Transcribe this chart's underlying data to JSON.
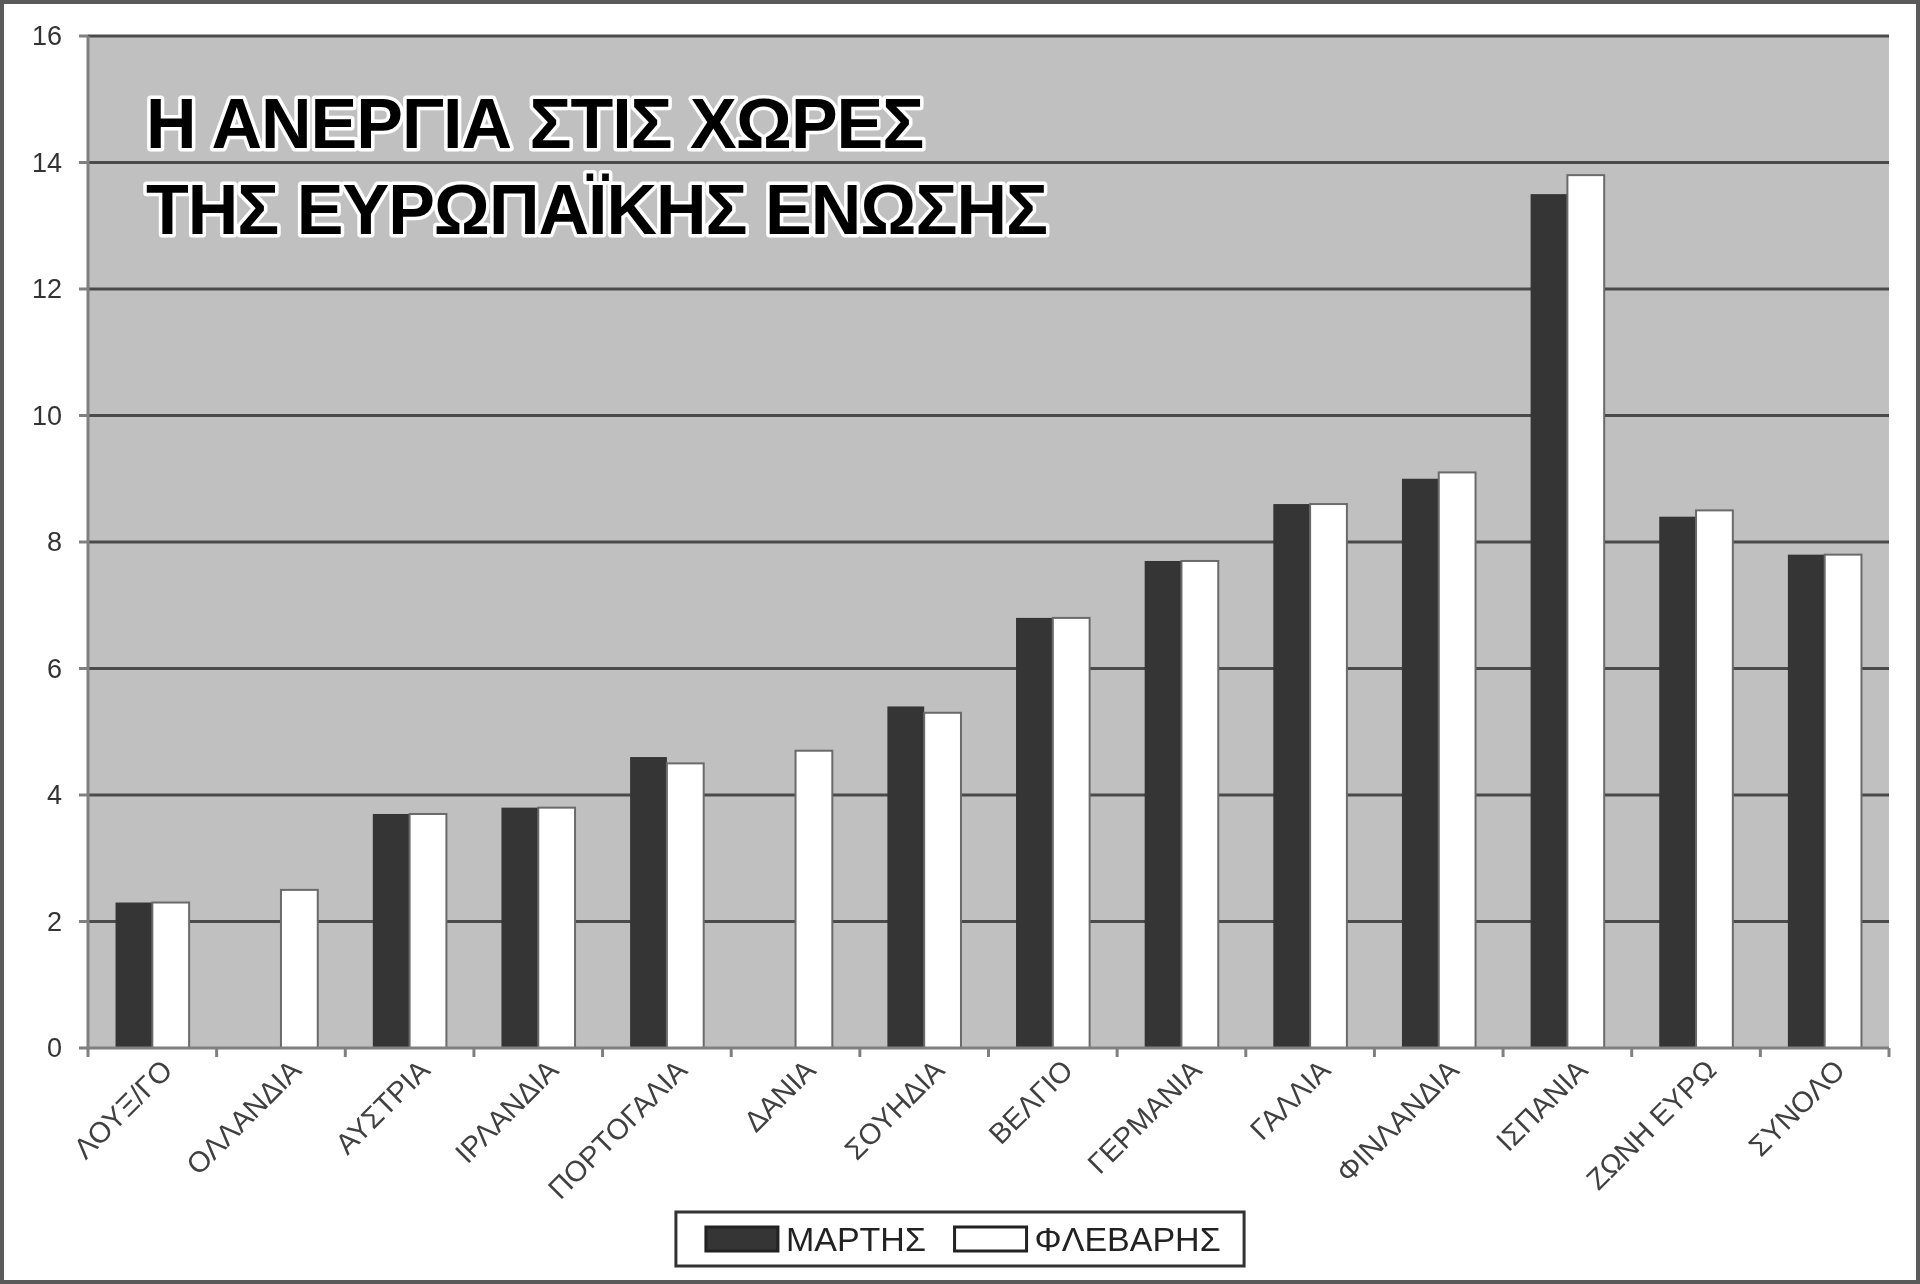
{
  "chart_data": {
    "type": "bar",
    "title": "Η ΑΝΕΡΓΙΑ ΣΤΙΣ ΧΩΡΕΣ\nΤΗΣ ΕΥΡΩΠΑΪΚΗΣ ΕΝΩΣΗΣ",
    "categories": [
      "ΛΟΥΞ/ΓΟ",
      "ΟΛΛΑΝΔΙΑ",
      "ΑΥΣΤΡΙΑ",
      "ΙΡΛΑΝΔΙΑ",
      "ΠΟΡΤΟΓΑΛΙΑ",
      "ΔΑΝΙΑ",
      "ΣΟΥΗΔΙΑ",
      "ΒΕΛΓΙΟ",
      "ΓΕΡΜΑΝΙΑ",
      "ΓΑΛΛΙΑ",
      "ΦΙΝΛΑΝΔΙΑ",
      "ΙΣΠΑΝΙΑ",
      "ΖΩΝΗ ΕΥΡΩ",
      "ΣΥΝΟΛΟ"
    ],
    "series": [
      {
        "name": "ΜΑΡΤΗΣ",
        "color": "#353535",
        "values": [
          2.3,
          null,
          3.7,
          3.8,
          4.6,
          null,
          5.4,
          6.8,
          7.7,
          8.6,
          9.0,
          13.5,
          8.4,
          7.8
        ]
      },
      {
        "name": "ΦΛΕΒΑΡΗΣ",
        "color": "#ffffff",
        "values": [
          2.3,
          2.5,
          3.7,
          3.8,
          4.5,
          4.7,
          5.3,
          6.8,
          7.7,
          8.6,
          9.1,
          13.8,
          8.5,
          7.8
        ]
      }
    ],
    "ylim": [
      0,
      16
    ],
    "yticks": [
      0,
      2,
      4,
      6,
      8,
      10,
      12,
      14,
      16
    ],
    "grid": "y",
    "legend": "bottom"
  }
}
